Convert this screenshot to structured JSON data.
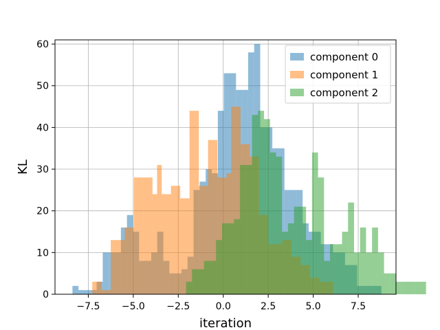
{
  "chart_data": {
    "type": "histogram",
    "title": "",
    "xlabel": "iteration",
    "ylabel": "KL",
    "xlim": [
      -9.35,
      9.6
    ],
    "ylim": [
      0,
      61
    ],
    "grid": true,
    "legend_position": "top-right",
    "xticks": [
      -7.5,
      -5.0,
      -2.5,
      0.0,
      2.5,
      5.0,
      7.5
    ],
    "xtick_labels": [
      "−7.5",
      "−5.0",
      "−2.5",
      "0.0",
      "2.5",
      "5.0",
      "7.5"
    ],
    "yticks": [
      0,
      10,
      20,
      30,
      40,
      50,
      60
    ],
    "ytick_labels": [
      "0",
      "10",
      "20",
      "30",
      "40",
      "50",
      "60"
    ],
    "series": [
      {
        "name": "component 0",
        "color": "#1f77b4",
        "alpha": 0.5,
        "bin_start": -8.38,
        "bin_width": 0.3366,
        "counts": [
          2,
          1,
          1,
          1,
          3,
          10,
          10,
          10,
          16,
          19,
          15,
          8,
          8,
          10,
          15,
          8,
          5,
          5,
          6,
          9,
          25,
          27,
          30,
          29,
          44,
          53,
          53,
          49,
          49,
          58,
          60,
          40,
          40,
          35,
          35,
          25,
          25,
          25,
          17,
          15,
          15,
          12,
          12,
          10,
          10,
          7,
          7,
          2,
          2,
          2,
          2
        ]
      },
      {
        "name": "component 1",
        "color": "#ff7f0e",
        "alpha": 0.5,
        "bin_start": -7.28,
        "bin_width": 0.2574,
        "counts": [
          3,
          3,
          1,
          1,
          13,
          13,
          13,
          16,
          16,
          28,
          28,
          28,
          28,
          24,
          31,
          24,
          24,
          26,
          26,
          23,
          23,
          44,
          44,
          26,
          26,
          37,
          37,
          28,
          28,
          29,
          45,
          45,
          36,
          36,
          33,
          33,
          19,
          19,
          12,
          12,
          12,
          13,
          13,
          9,
          9,
          7,
          7,
          4,
          4,
          3,
          3,
          3
        ]
      },
      {
        "name": "component 2",
        "color": "#2ca02c",
        "alpha": 0.5,
        "bin_start": -2.07,
        "bin_width": 0.3335,
        "counts": [
          3,
          6,
          6,
          8,
          8,
          13,
          17,
          17,
          18,
          31,
          31,
          43,
          44,
          42,
          34,
          33,
          15,
          17,
          21,
          21,
          13,
          34,
          28,
          8,
          12,
          12,
          15,
          22,
          10,
          16,
          10,
          16,
          10,
          5,
          5,
          3,
          3,
          3,
          3,
          3
        ]
      }
    ]
  }
}
